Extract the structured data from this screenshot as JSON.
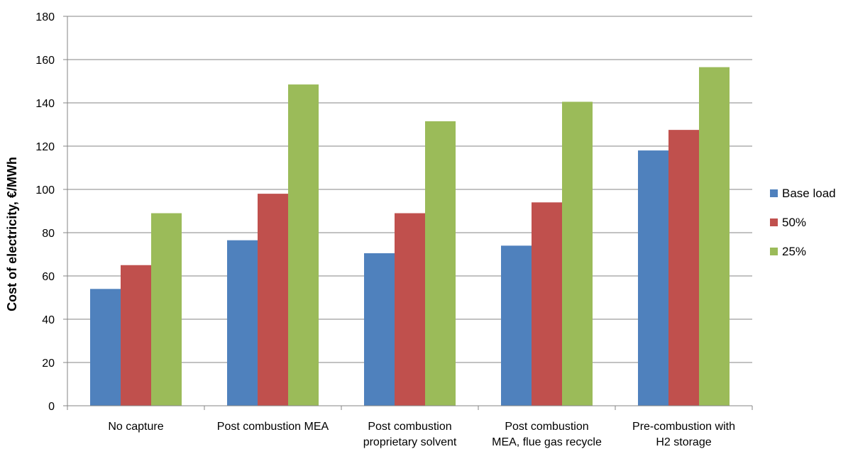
{
  "chart_data": {
    "type": "bar",
    "title": "",
    "xlabel": "",
    "ylabel": "Cost of electricity, €/MWh",
    "ylim": [
      0,
      180
    ],
    "yticks": [
      0,
      20,
      40,
      60,
      80,
      100,
      120,
      140,
      160,
      180
    ],
    "grid": true,
    "legend_position": "right",
    "categories": [
      [
        "No capture"
      ],
      [
        "Post combustion MEA"
      ],
      [
        "Post combustion",
        "proprietary solvent"
      ],
      [
        "Post combustion",
        "MEA, flue gas recycle"
      ],
      [
        "Pre-combustion with",
        "H2 storage"
      ]
    ],
    "series": [
      {
        "name": "Base load",
        "color": "#4F81BD",
        "values": [
          54,
          76.5,
          70.5,
          74,
          118
        ]
      },
      {
        "name": "50%",
        "color": "#C0504D",
        "values": [
          65,
          98,
          89,
          94,
          127.5
        ]
      },
      {
        "name": "25%",
        "color": "#9BBB59",
        "values": [
          89,
          148.5,
          131.5,
          140.5,
          156.5
        ]
      }
    ]
  }
}
